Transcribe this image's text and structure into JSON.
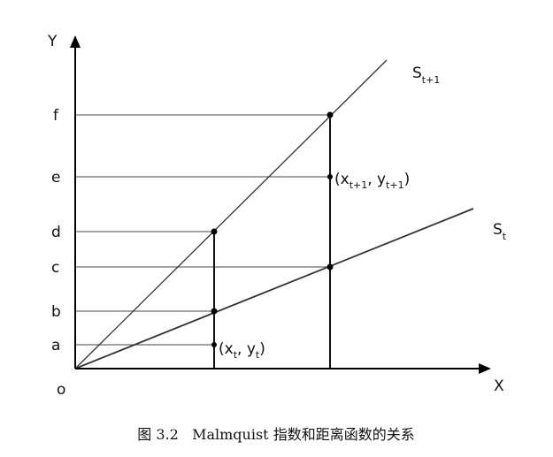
{
  "axes": {
    "y_label": "Y",
    "x_label": "X",
    "origin": "o"
  },
  "y_levels": [
    "a",
    "b",
    "c",
    "d",
    "e",
    "f"
  ],
  "lines": [
    {
      "label": "S",
      "subscript": "t+1"
    },
    {
      "label": "S",
      "subscript": "t"
    }
  ],
  "points": [
    {
      "label_parts": [
        "(x",
        "t",
        ", y",
        "t",
        ")"
      ]
    },
    {
      "label_parts": [
        "(x",
        "t+1",
        ", y",
        "t+1",
        ")"
      ]
    }
  ],
  "caption": "图 3.2   Malmquist 指数和距离函数的关系"
}
